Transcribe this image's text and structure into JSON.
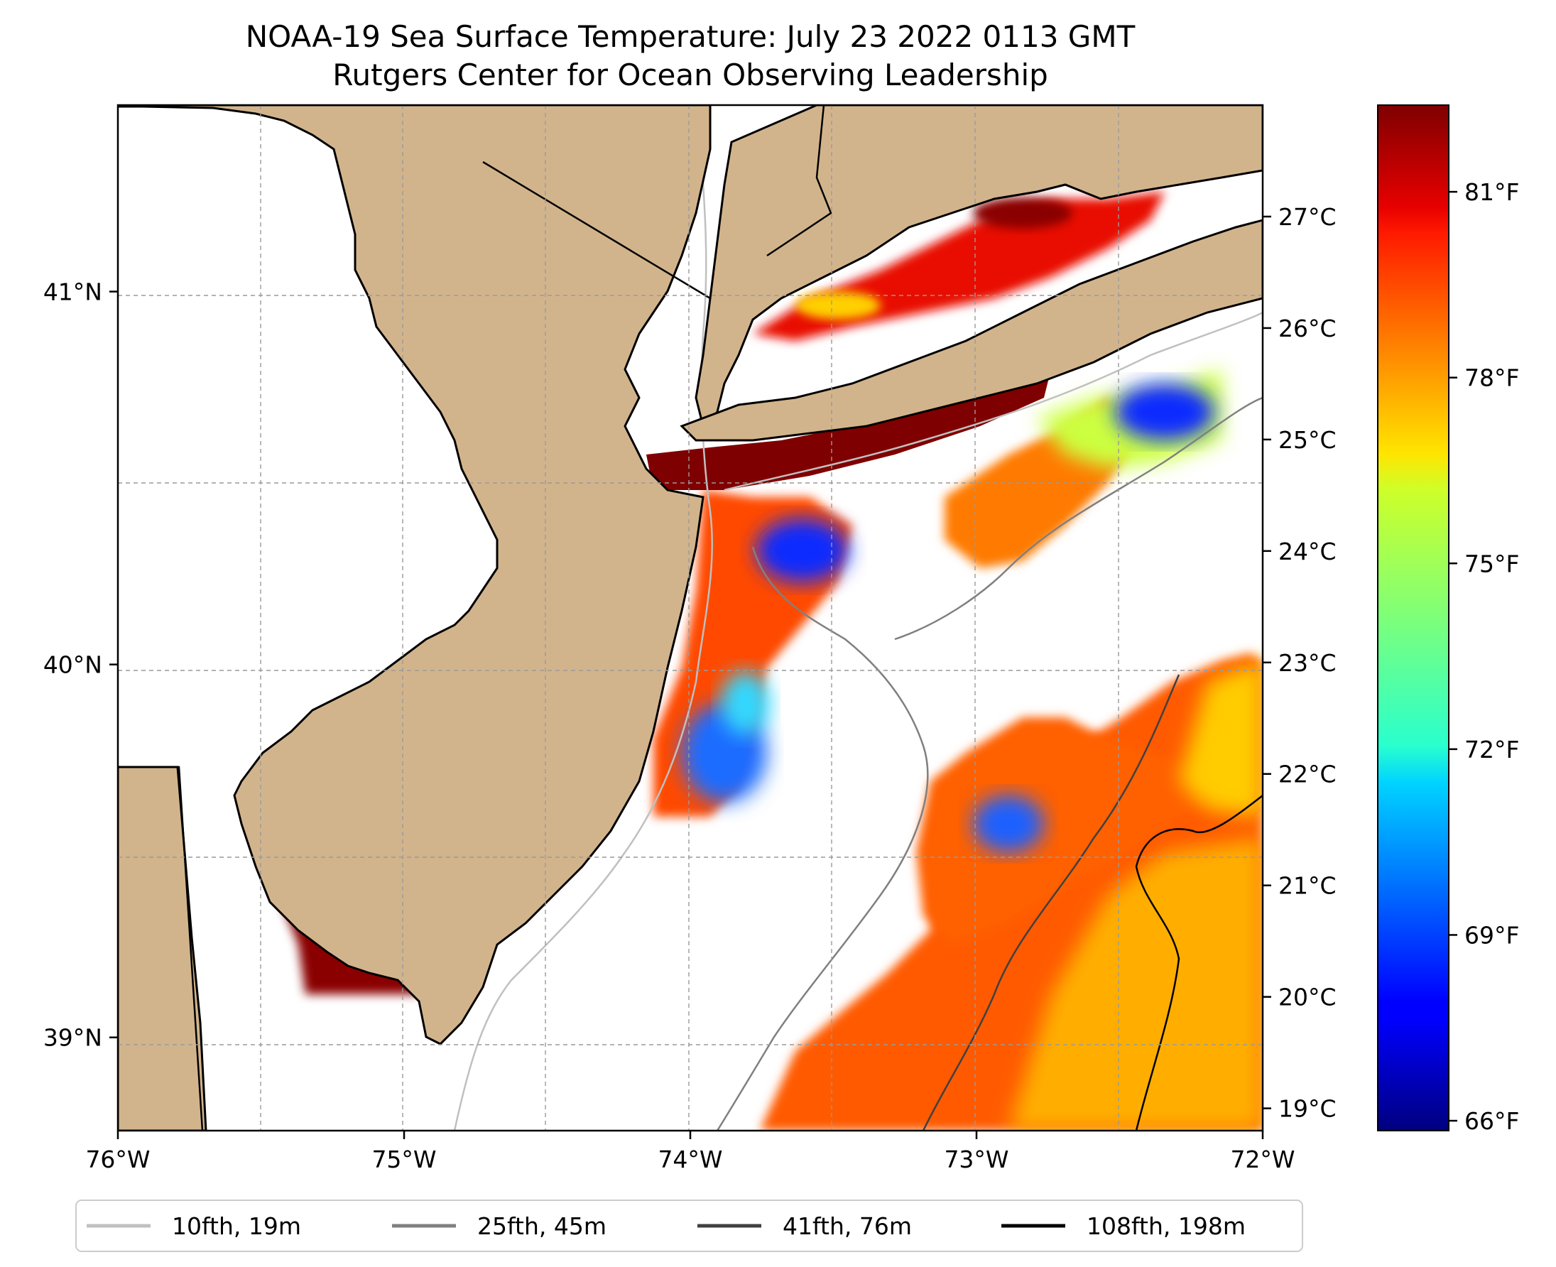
{
  "title": {
    "line1": "NOAA-19 Sea Surface Temperature: July 23 2022 0113 GMT",
    "line2": "Rutgers Center for Ocean Observing Leadership"
  },
  "map": {
    "lon_range": [
      -76,
      -72
    ],
    "lat_range": [
      38.75,
      41.5
    ],
    "x_ticks": [
      {
        "lon": -76,
        "label": "76°W"
      },
      {
        "lon": -75,
        "label": "75°W"
      },
      {
        "lon": -74,
        "label": "74°W"
      },
      {
        "lon": -73,
        "label": "73°W"
      },
      {
        "lon": -72,
        "label": "72°W"
      }
    ],
    "y_ticks": [
      {
        "lat": 41,
        "label": "41°N"
      },
      {
        "lat": 40,
        "label": "40°N"
      },
      {
        "lat": 39,
        "label": "39°N"
      }
    ],
    "land_color": "#d2b48c",
    "no_data_color": "#ffffff"
  },
  "colorbar": {
    "colormap": "jet",
    "range_c": [
      18.8,
      28.0
    ],
    "celsius_ticks": [
      {
        "value": 19,
        "label": "19°C"
      },
      {
        "value": 20,
        "label": "20°C"
      },
      {
        "value": 21,
        "label": "21°C"
      },
      {
        "value": 22,
        "label": "22°C"
      },
      {
        "value": 23,
        "label": "23°C"
      },
      {
        "value": 24,
        "label": "24°C"
      },
      {
        "value": 25,
        "label": "25°C"
      },
      {
        "value": 26,
        "label": "26°C"
      },
      {
        "value": 27,
        "label": "27°C"
      }
    ],
    "fahrenheit_ticks": [
      {
        "value": 66,
        "label": "66°F"
      },
      {
        "value": 69,
        "label": "69°F"
      },
      {
        "value": 72,
        "label": "72°F"
      },
      {
        "value": 75,
        "label": "75°F"
      },
      {
        "value": 78,
        "label": "78°F"
      },
      {
        "value": 81,
        "label": "81°F"
      }
    ]
  },
  "legend": {
    "items": [
      {
        "label": "10fth, 19m",
        "color": "#c0c0c0"
      },
      {
        "label": "25fth, 45m",
        "color": "#808080"
      },
      {
        "label": "41fth, 76m",
        "color": "#404040"
      },
      {
        "label": "108fth, 198m",
        "color": "#000000"
      }
    ]
  }
}
